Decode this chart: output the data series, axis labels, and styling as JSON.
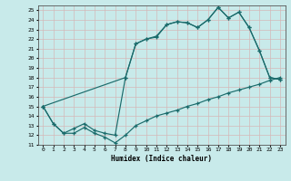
{
  "xlabel": "Humidex (Indice chaleur)",
  "bg_color": "#c8eaea",
  "grid_color": "#b0d0d0",
  "line_color": "#1a6b6b",
  "xlim": [
    -0.5,
    23.5
  ],
  "ylim": [
    11,
    25.5
  ],
  "xticks": [
    0,
    1,
    2,
    3,
    4,
    5,
    6,
    7,
    8,
    9,
    10,
    11,
    12,
    13,
    14,
    15,
    16,
    17,
    18,
    19,
    20,
    21,
    22,
    23
  ],
  "yticks": [
    11,
    12,
    13,
    14,
    15,
    16,
    17,
    18,
    19,
    20,
    21,
    22,
    23,
    24,
    25
  ],
  "curve1_x": [
    0,
    1,
    2,
    3,
    4,
    5,
    6,
    7,
    8,
    9,
    10,
    11,
    12,
    13,
    14,
    15,
    16,
    17,
    18,
    19,
    20,
    21,
    22,
    23
  ],
  "curve1_y": [
    15.0,
    13.2,
    12.2,
    12.2,
    12.8,
    12.2,
    11.8,
    11.2,
    12.0,
    13.0,
    13.5,
    14.0,
    14.3,
    14.6,
    15.0,
    15.3,
    15.7,
    16.0,
    16.4,
    16.7,
    17.0,
    17.3,
    17.7,
    18.0
  ],
  "curve2_x": [
    0,
    1,
    2,
    3,
    4,
    5,
    6,
    7,
    8,
    9,
    10,
    11,
    12,
    13,
    14,
    15,
    16,
    17,
    18,
    19,
    20,
    21,
    22,
    23
  ],
  "curve2_y": [
    15.0,
    13.2,
    12.2,
    12.7,
    13.2,
    12.5,
    12.2,
    12.0,
    18.0,
    21.5,
    22.0,
    22.2,
    23.5,
    23.8,
    23.7,
    23.2,
    24.0,
    25.3,
    24.2,
    24.8,
    23.2,
    20.8,
    18.0,
    17.8
  ],
  "curve3_x": [
    0,
    8,
    9,
    10,
    11,
    12,
    13,
    14,
    15,
    16,
    17,
    18,
    19,
    20,
    21,
    22,
    23
  ],
  "curve3_y": [
    15.0,
    18.0,
    21.5,
    22.0,
    22.3,
    23.5,
    23.8,
    23.7,
    23.2,
    24.0,
    25.3,
    24.2,
    24.8,
    23.2,
    20.8,
    18.0,
    17.8
  ]
}
